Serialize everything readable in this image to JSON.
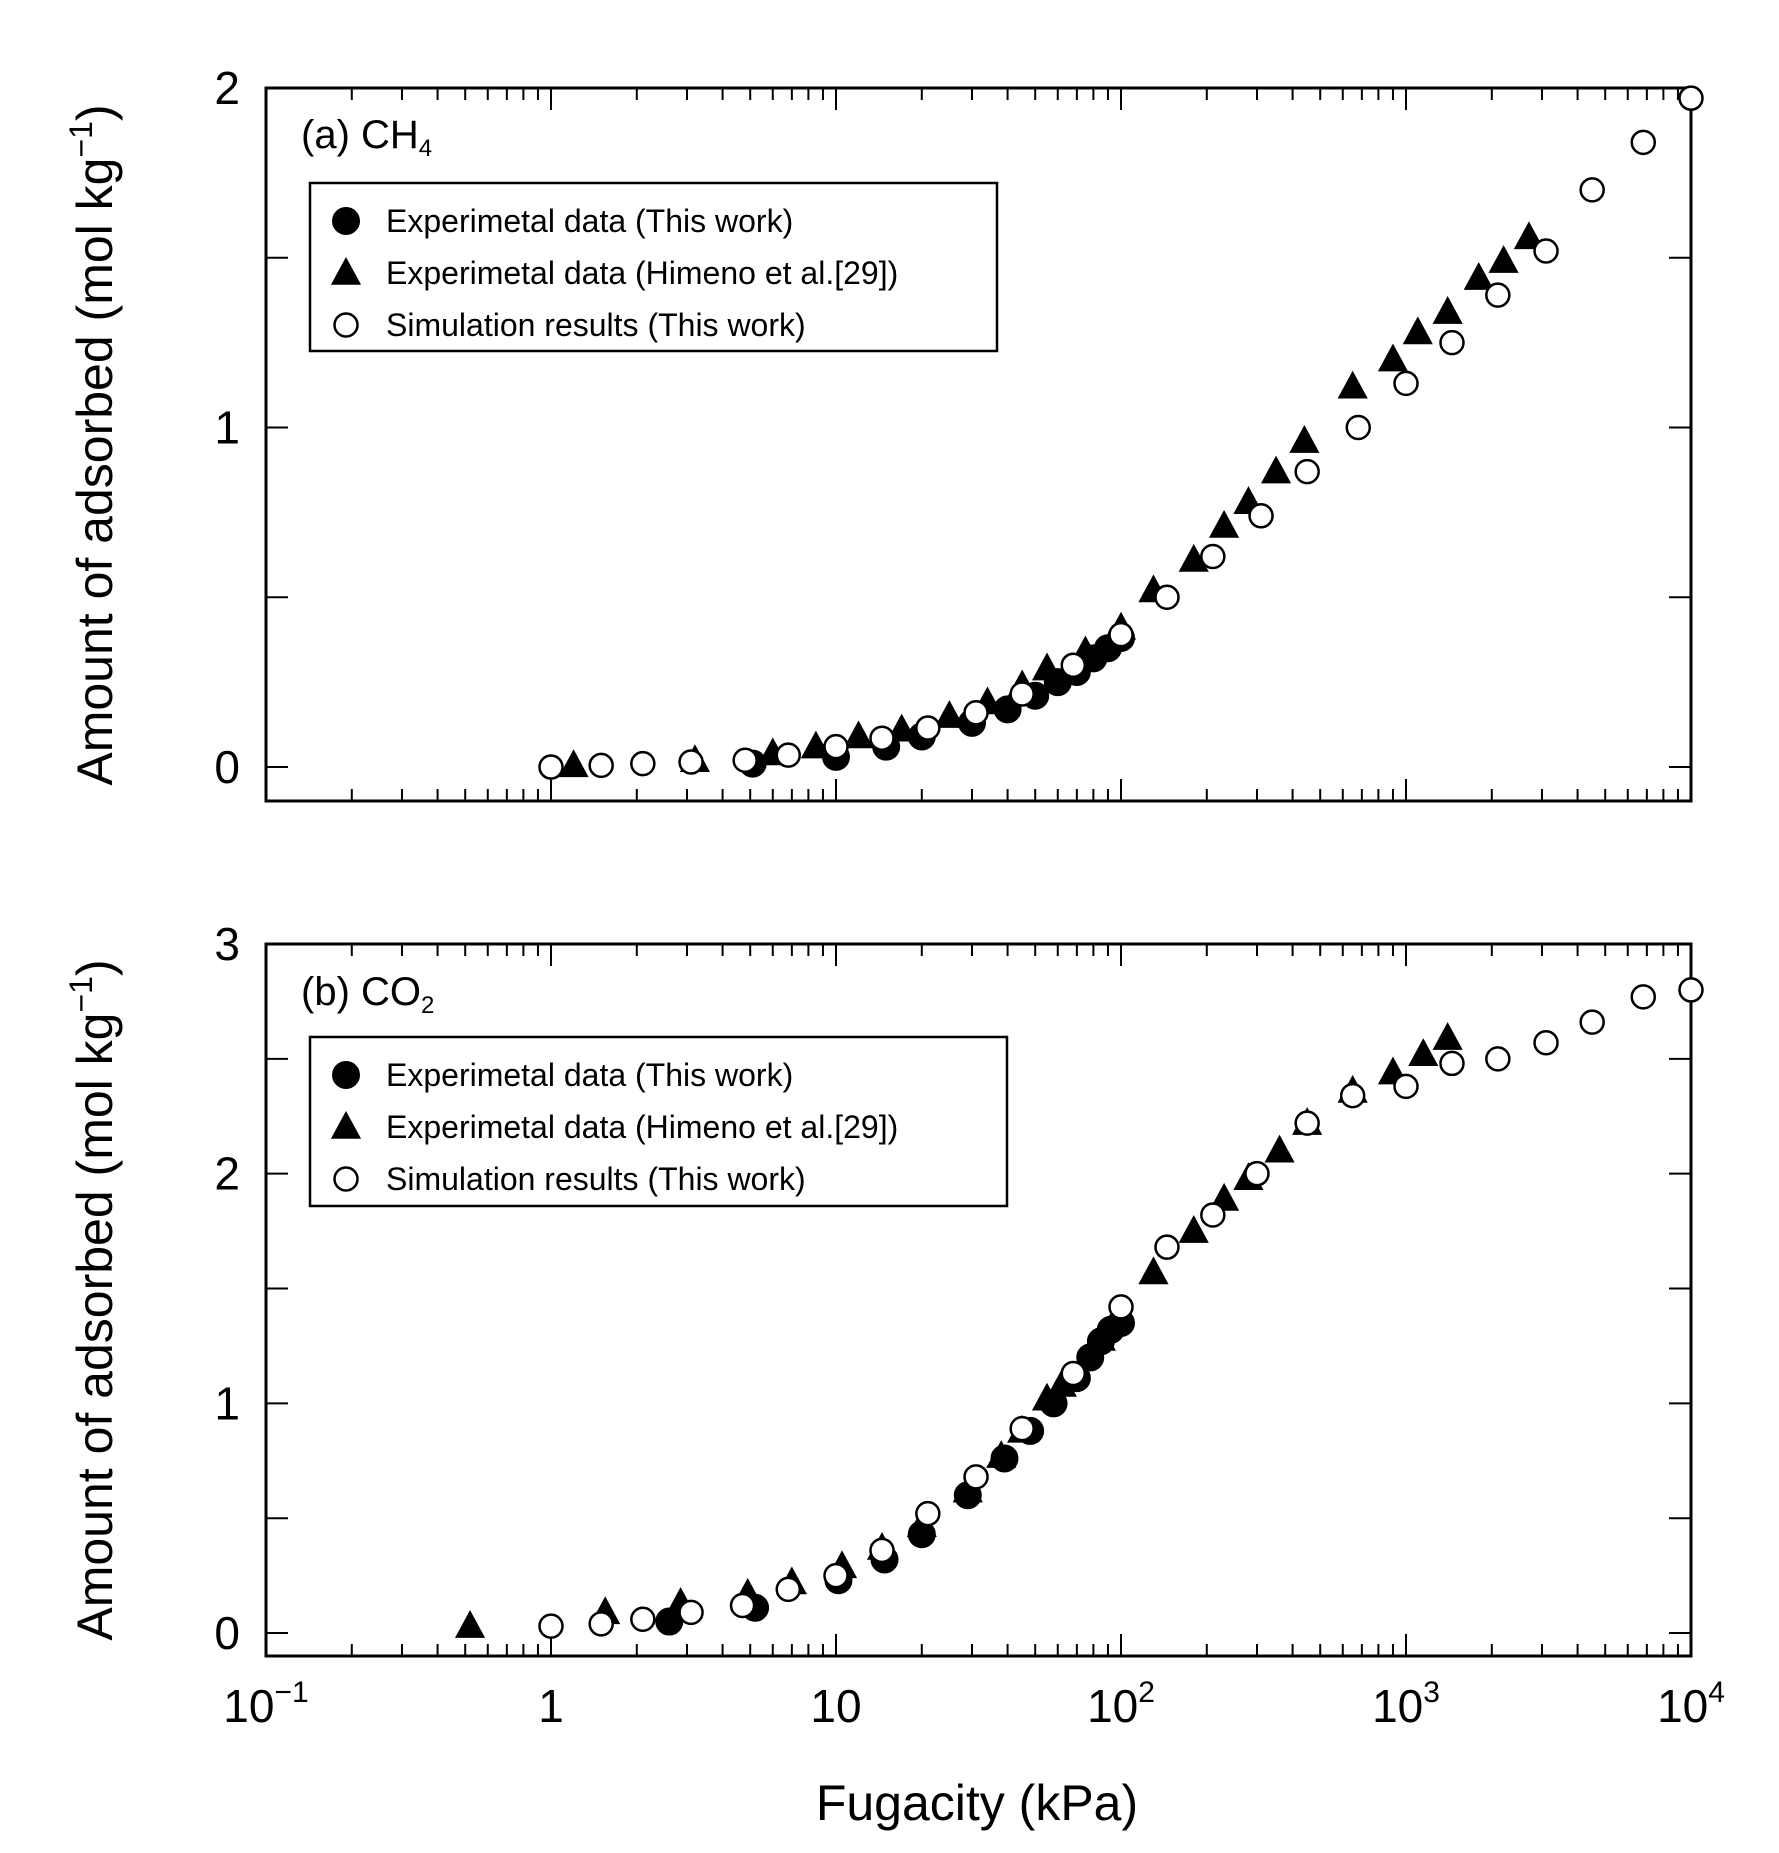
{
  "chart_data": [
    {
      "type": "scatter",
      "panel_label": "(a) CH",
      "panel_label_sub": "4",
      "xscale": "log",
      "xlim": [
        0.1,
        10000
      ],
      "ylim": [
        -0.1,
        2
      ],
      "yticks": [
        0,
        0.5,
        1,
        1.5,
        2
      ],
      "ytick_labels": [
        "0",
        "1",
        "2"
      ],
      "ylabel_main": "Amount of adsorbed (mol kg",
      "ylabel_sup": "−1",
      "ylabel_end": ")",
      "legend_position": "top-left",
      "series": [
        {
          "name": "Experimetal data (This work)",
          "marker": "filled-circle",
          "x": [
            5.1,
            10,
            15,
            20,
            30,
            40,
            50,
            60,
            70,
            80,
            90,
            100
          ],
          "y": [
            0.01,
            0.03,
            0.06,
            0.09,
            0.13,
            0.17,
            0.21,
            0.25,
            0.28,
            0.32,
            0.35,
            0.38
          ]
        },
        {
          "name": "Experimetal data (Himeno et al.[29])",
          "marker": "filled-triangle",
          "x": [
            1.2,
            3.2,
            6,
            8.5,
            12,
            17,
            25,
            34,
            45,
            55,
            75,
            100,
            130,
            180,
            230,
            280,
            350,
            440,
            650,
            900,
            1100,
            1400,
            1800,
            2200,
            2700
          ],
          "y": [
            0.005,
            0.02,
            0.04,
            0.06,
            0.09,
            0.11,
            0.15,
            0.19,
            0.24,
            0.29,
            0.34,
            0.41,
            0.52,
            0.61,
            0.71,
            0.78,
            0.87,
            0.96,
            1.12,
            1.2,
            1.28,
            1.34,
            1.44,
            1.49,
            1.56
          ]
        },
        {
          "name": "Simulation results (This work)",
          "marker": "open-circle",
          "x": [
            1,
            1.5,
            2.1,
            3.1,
            4.8,
            6.8,
            10,
            14.5,
            21,
            31,
            45,
            68,
            100,
            145,
            210,
            310,
            450,
            680,
            1000,
            1450,
            2100,
            3100,
            4500,
            6800,
            10000
          ],
          "y": [
            0.0,
            0.005,
            0.01,
            0.015,
            0.02,
            0.035,
            0.06,
            0.085,
            0.115,
            0.16,
            0.215,
            0.3,
            0.39,
            0.5,
            0.62,
            0.74,
            0.87,
            1.0,
            1.13,
            1.25,
            1.39,
            1.52,
            1.7,
            1.84,
            1.97
          ]
        }
      ]
    },
    {
      "type": "scatter",
      "panel_label": "(b) CO",
      "panel_label_sub": "2",
      "xscale": "log",
      "xlim": [
        0.1,
        10000
      ],
      "ylim": [
        -0.1,
        3
      ],
      "yticks": [
        0,
        0.5,
        1,
        1.5,
        2,
        2.5,
        3
      ],
      "ytick_labels": [
        "0",
        "1",
        "2",
        "3"
      ],
      "ylabel_main": "Amount of adsorbed (mol kg",
      "ylabel_sup": "−1",
      "ylabel_end": ")",
      "legend_position": "top-left",
      "series": [
        {
          "name": "Experimetal data (This work)",
          "marker": "filled-circle",
          "x": [
            2.6,
            5.2,
            10.2,
            14.8,
            20,
            29,
            39,
            48,
            58,
            70,
            78,
            85,
            92,
            100
          ],
          "y": [
            0.05,
            0.11,
            0.23,
            0.32,
            0.43,
            0.6,
            0.76,
            0.88,
            1.0,
            1.11,
            1.2,
            1.27,
            1.32,
            1.35
          ]
        },
        {
          "name": "Experimetal data (Himeno et al.[29])",
          "marker": "filled-triangle",
          "x": [
            0.52,
            1.55,
            2.85,
            4.9,
            7,
            10.5,
            14.5,
            20,
            29,
            38,
            45,
            55,
            62,
            85,
            130,
            180,
            230,
            280,
            360,
            450,
            650,
            900,
            1150,
            1400
          ],
          "y": [
            0.03,
            0.09,
            0.13,
            0.17,
            0.22,
            0.29,
            0.37,
            0.47,
            0.62,
            0.77,
            0.88,
            1.02,
            1.08,
            1.28,
            1.57,
            1.75,
            1.89,
            1.98,
            2.1,
            2.22,
            2.36,
            2.44,
            2.52,
            2.59
          ]
        },
        {
          "name": "Simulation results (This work)",
          "marker": "open-circle",
          "x": [
            1,
            1.5,
            2.1,
            3.1,
            4.7,
            6.8,
            10,
            14.5,
            21,
            31,
            45,
            68,
            100,
            145,
            210,
            300,
            450,
            650,
            1000,
            1450,
            2100,
            3100,
            4500,
            6800,
            10000
          ],
          "y": [
            0.03,
            0.04,
            0.06,
            0.09,
            0.12,
            0.19,
            0.25,
            0.36,
            0.52,
            0.68,
            0.89,
            1.13,
            1.42,
            1.68,
            1.82,
            2.0,
            2.22,
            2.34,
            2.38,
            2.48,
            2.5,
            2.57,
            2.66,
            2.77,
            2.8
          ]
        }
      ]
    }
  ],
  "x_axis": {
    "title": "Fugacity (kPa)",
    "tick_labels": [
      {
        "base": "10",
        "sup": "−1"
      },
      {
        "base": "1",
        "sup": ""
      },
      {
        "base": "10",
        "sup": ""
      },
      {
        "base": "10",
        "sup": "2"
      },
      {
        "base": "10",
        "sup": "3"
      },
      {
        "base": "10",
        "sup": "4"
      }
    ],
    "tick_values": [
      0.1,
      1,
      10,
      100,
      1000,
      10000
    ]
  }
}
